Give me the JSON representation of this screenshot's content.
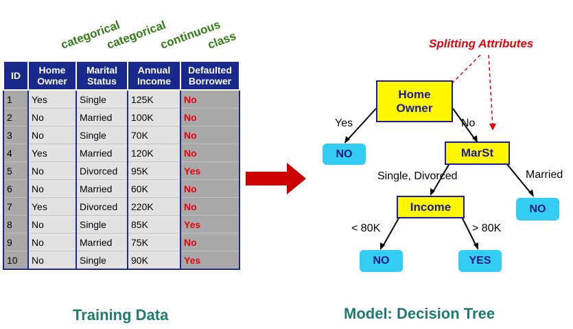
{
  "column_types": [
    "categorical",
    "categorical",
    "continuous",
    "class"
  ],
  "table": {
    "headers": [
      [
        "ID"
      ],
      [
        "Home",
        "Owner"
      ],
      [
        "Marital",
        "Status"
      ],
      [
        "Annual",
        "Income"
      ],
      [
        "Defaulted",
        "Borrower"
      ]
    ],
    "rows": [
      [
        "1",
        "Yes",
        "Single",
        "125K",
        "No"
      ],
      [
        "2",
        "No",
        "Married",
        "100K",
        "No"
      ],
      [
        "3",
        "No",
        "Single",
        "70K",
        "No"
      ],
      [
        "4",
        "Yes",
        "Married",
        "120K",
        "No"
      ],
      [
        "5",
        "No",
        "Divorced",
        "95K",
        "Yes"
      ],
      [
        "6",
        "No",
        "Married",
        "60K",
        "No"
      ],
      [
        "7",
        "Yes",
        "Divorced",
        "220K",
        "No"
      ],
      [
        "8",
        "No",
        "Single",
        "85K",
        "Yes"
      ],
      [
        "9",
        "No",
        "Married",
        "75K",
        "No"
      ],
      [
        "10",
        "No",
        "Single",
        "90K",
        "Yes"
      ]
    ]
  },
  "training_caption": "Training Data",
  "model_caption": "Model:  Decision Tree",
  "splitting_label": "Splitting Attributes",
  "tree": {
    "root": {
      "line1": "Home",
      "line2": "Owner"
    },
    "root_yes_label": "Yes",
    "root_no_label": "No",
    "leaf_no_1": "NO",
    "marst": "MarSt",
    "marst_left_label": "Single, Divorced",
    "marst_right_label": "Married",
    "leaf_no_2": "NO",
    "income": "Income",
    "income_left_label": "< 80K",
    "income_right_label": "> 80K",
    "leaf_no_3": "NO",
    "leaf_yes": "YES"
  },
  "colors": {
    "header_blue": "#1a2a8c",
    "class_red": "#e8000b",
    "type_green": "#2e7d13",
    "node_yellow": "#fff700",
    "leaf_cyan": "#33ccf2",
    "arrow_red": "#cc0000",
    "caption_teal": "#1f7a6f"
  }
}
